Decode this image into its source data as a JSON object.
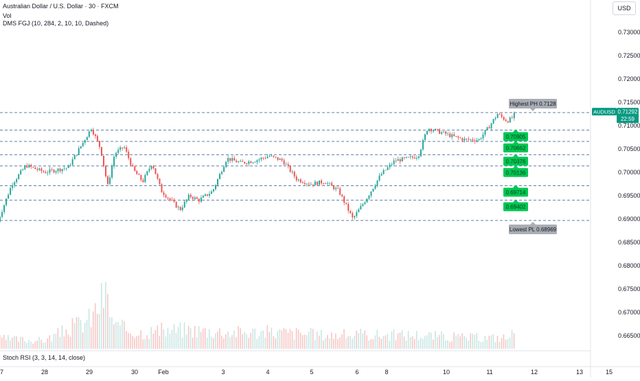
{
  "header": {
    "title": "Australian Dollar / U.S. Dollar · 30 · FXCM",
    "vol_label": "Vol",
    "indicator_label": "DMS FGJ (10, 284, 2, 10, 10, Dashed)"
  },
  "currency_button": "USD",
  "stoch_label": "Stoch RSI (3, 3, 14, 14, close)",
  "colors": {
    "up": "#26a69a",
    "down": "#ef5350",
    "level_line": "#5b7fa6",
    "label_green": "#00c853",
    "label_gray": "#a9adb3",
    "price_tag": "#089981"
  },
  "chart_data": {
    "type": "candlestick",
    "symbol": "AUDUSD",
    "timeframe": "30",
    "y_axis": {
      "ticks": [
        0.73,
        0.725,
        0.72,
        0.715,
        0.71,
        0.705,
        0.7,
        0.695,
        0.69,
        0.685,
        0.68,
        0.675,
        0.67,
        0.665
      ],
      "tick_labels": [
        "0.73000",
        "0.72500",
        "0.72000",
        "0.71500",
        "0.71000",
        "0.70500",
        "0.70000",
        "0.69500",
        "0.69000",
        "0.68500",
        "0.68000",
        "0.67500",
        "0.67000",
        "0.66500"
      ]
    },
    "x_axis": {
      "ticks": [
        {
          "label": "27",
          "x": 0
        },
        {
          "label": "28",
          "x": 1
        },
        {
          "label": "29",
          "x": 2
        },
        {
          "label": "30",
          "x": 3
        },
        {
          "label": "Feb",
          "x": 3.6
        },
        {
          "label": "3",
          "x": 4.6
        },
        {
          "label": "4",
          "x": 5.6
        },
        {
          "label": "5",
          "x": 6.6
        },
        {
          "label": "6",
          "x": 7.6
        },
        {
          "label": "8",
          "x": 8.3
        },
        {
          "label": "10",
          "x": 9.6
        },
        {
          "label": "11",
          "x": 10.6
        },
        {
          "label": "12",
          "x": 11.6
        },
        {
          "label": "13",
          "x": 12.6
        },
        {
          "label": "15",
          "x": 13.6
        }
      ]
    },
    "price_path": [
      [
        0,
        0.6895
      ],
      [
        0.3,
        0.6975
      ],
      [
        0.6,
        0.7015
      ],
      [
        1.0,
        0.7
      ],
      [
        1.5,
        0.701
      ],
      [
        1.8,
        0.706
      ],
      [
        2.0,
        0.7095
      ],
      [
        2.2,
        0.705
      ],
      [
        2.35,
        0.697
      ],
      [
        2.5,
        0.704
      ],
      [
        2.7,
        0.7055
      ],
      [
        2.9,
        0.7005
      ],
      [
        3.1,
        0.698
      ],
      [
        3.3,
        0.702
      ],
      [
        3.5,
        0.696
      ],
      [
        3.7,
        0.694
      ],
      [
        3.9,
        0.692
      ],
      [
        4.1,
        0.695
      ],
      [
        4.3,
        0.694
      ],
      [
        4.6,
        0.696
      ],
      [
        4.9,
        0.703
      ],
      [
        5.2,
        0.702
      ],
      [
        5.5,
        0.7025
      ],
      [
        5.8,
        0.7035
      ],
      [
        6.1,
        0.7025
      ],
      [
        6.4,
        0.6985
      ],
      [
        6.7,
        0.6975
      ],
      [
        7.0,
        0.698
      ],
      [
        7.3,
        0.696
      ],
      [
        7.6,
        0.69
      ],
      [
        7.9,
        0.6945
      ],
      [
        8.2,
        0.6995
      ],
      [
        8.5,
        0.7025
      ],
      [
        8.8,
        0.703
      ],
      [
        9.0,
        0.7035
      ],
      [
        9.2,
        0.7095
      ],
      [
        9.5,
        0.7085
      ],
      [
        9.8,
        0.7075
      ],
      [
        10.0,
        0.707
      ],
      [
        10.3,
        0.707
      ],
      [
        10.5,
        0.7095
      ],
      [
        10.7,
        0.7125
      ],
      [
        10.9,
        0.711
      ],
      [
        11.0,
        0.7115
      ],
      [
        11.1,
        0.7129
      ]
    ],
    "volume_path": [
      [
        0,
        0.18
      ],
      [
        1,
        0.15
      ],
      [
        2,
        0.55
      ],
      [
        2.3,
        1.0
      ],
      [
        2.5,
        0.4
      ],
      [
        3,
        0.3
      ],
      [
        4,
        0.35
      ],
      [
        5,
        0.3
      ],
      [
        6,
        0.3
      ],
      [
        7,
        0.25
      ],
      [
        8,
        0.25
      ],
      [
        9,
        0.25
      ],
      [
        10,
        0.2
      ],
      [
        11,
        0.2
      ],
      [
        11.1,
        0.75
      ]
    ],
    "levels": [
      {
        "value": 0.7128,
        "style": "dashed"
      },
      {
        "value": 0.70905,
        "style": "dashed"
      },
      {
        "value": 0.70662,
        "style": "dashed"
      },
      {
        "value": 0.70376,
        "style": "dashed"
      },
      {
        "value": 0.70136,
        "style": "dashed"
      },
      {
        "value": 0.69714,
        "style": "dashed"
      },
      {
        "value": 0.69402,
        "style": "dashed"
      },
      {
        "value": 0.68969,
        "style": "dashed"
      }
    ],
    "level_labels": [
      {
        "text": "0.70905",
        "value": 0.70905
      },
      {
        "text": "0.70662",
        "value": 0.70662
      },
      {
        "text": "0.70376",
        "value": 0.70376
      },
      {
        "text": "0.70136",
        "value": 0.70136
      },
      {
        "text": "0.69714",
        "value": 0.69714
      },
      {
        "text": "0.69402",
        "value": 0.69402
      }
    ],
    "annotations": [
      {
        "text": "Highest PH 0.7128",
        "value": 0.7128,
        "position": "above"
      },
      {
        "text": "Lowest PL 0.68969",
        "value": 0.68969,
        "position": "below"
      }
    ],
    "last_price": {
      "symbol": "AUDUSD",
      "value": 0.71292,
      "value_label": "0.71292",
      "countdown": "22:59"
    }
  }
}
